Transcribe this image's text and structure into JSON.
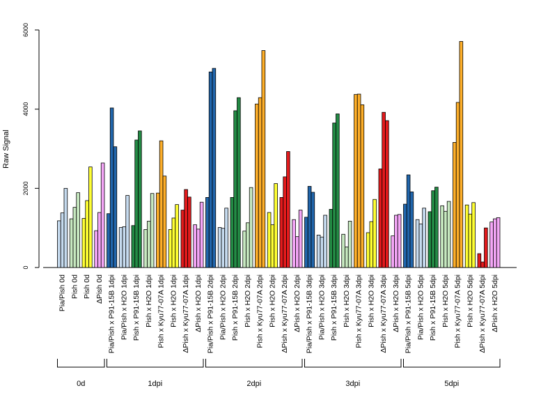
{
  "chart_data": {
    "type": "bar",
    "ylabel": "Raw Signal",
    "ylim": [
      0,
      6000
    ],
    "yticks": [
      0,
      2000,
      4000,
      6000
    ],
    "palette": {
      "lightblue": "#c6dbef",
      "blue": "#2166ac",
      "lightgreen": "#c7e9c0",
      "green": "#238b45",
      "yellow": "#ffff33",
      "orange": "#fdae29",
      "red": "#e31a1c",
      "pink": "#f4a6f7"
    },
    "categories": [
      {
        "label": "Pia/Pish 0d",
        "color": "lightblue",
        "values": [
          1180,
          1380,
          2000
        ]
      },
      {
        "label": "Pish 0d",
        "color": "lightgreen",
        "values": [
          1230,
          1520,
          1890
        ]
      },
      {
        "label": "Pish 0d",
        "color": "yellow",
        "values": [
          1240,
          1690,
          2540
        ]
      },
      {
        "label": "ΔPish 0d",
        "color": "pink",
        "values": [
          930,
          1390,
          2640
        ]
      },
      {
        "label": "Pia/Pish x P91-15B 1dpi",
        "color": "blue",
        "values": [
          1360,
          4030,
          3050
        ]
      },
      {
        "label": "Pia/Pish x H2O 1dpi",
        "color": "lightblue",
        "values": [
          1010,
          1030,
          1820
        ]
      },
      {
        "label": "Pish x P91-15B 1dpi",
        "color": "green",
        "values": [
          1060,
          3220,
          3450
        ]
      },
      {
        "label": "Pish x H2O 1dpi",
        "color": "lightgreen",
        "values": [
          960,
          1170,
          1870
        ]
      },
      {
        "label": "Pish x Kyu77-07A 1dpi",
        "color": "orange",
        "values": [
          1880,
          3200,
          2310
        ]
      },
      {
        "label": "Pish x H2O 1dpi",
        "color": "yellow",
        "values": [
          960,
          1250,
          1590
        ]
      },
      {
        "label": "ΔPish x Kyu77-07A 1dpi",
        "color": "red",
        "values": [
          1450,
          1970,
          1780
        ]
      },
      {
        "label": "ΔPish x H2O 1dpi",
        "color": "pink",
        "values": [
          1080,
          970,
          1650
        ]
      },
      {
        "label": "Pia/Pish x P91-15B 2dpi",
        "color": "blue",
        "values": [
          1770,
          4940,
          5030
        ]
      },
      {
        "label": "Pia/Pish x H2O 2dpi",
        "color": "lightblue",
        "values": [
          1010,
          990,
          1500
        ]
      },
      {
        "label": "Pish x P91-15B 2dpi",
        "color": "green",
        "values": [
          1770,
          3960,
          4290
        ]
      },
      {
        "label": "Pish x H2O 2dpi",
        "color": "lightgreen",
        "values": [
          920,
          1130,
          2020
        ]
      },
      {
        "label": "Pish x Kyu77-07A 2dpi",
        "color": "orange",
        "values": [
          4130,
          4290,
          5480
        ]
      },
      {
        "label": "Pish x H2O 2dpi",
        "color": "yellow",
        "values": [
          1390,
          1080,
          2120
        ]
      },
      {
        "label": "ΔPish x Kyu77-07A 2dpi",
        "color": "red",
        "values": [
          1770,
          2290,
          2930
        ]
      },
      {
        "label": "ΔPish x H2O 2dpi",
        "color": "pink",
        "values": [
          1210,
          780,
          1450
        ]
      },
      {
        "label": "Pia/Pish x P91-15B 3dpi",
        "color": "blue",
        "values": [
          1270,
          2050,
          1900
        ]
      },
      {
        "label": "Pia/Pish x H2O 3dpi",
        "color": "lightblue",
        "values": [
          820,
          770,
          1320
        ]
      },
      {
        "label": "Pish x P91-15B 3dpi",
        "color": "green",
        "values": [
          1470,
          3650,
          3880
        ]
      },
      {
        "label": "Pish x H2O 3dpi",
        "color": "lightgreen",
        "values": [
          840,
          520,
          1170
        ]
      },
      {
        "label": "Pish x Kyu77-07A 3dpi",
        "color": "orange",
        "values": [
          4370,
          4380,
          4110
        ]
      },
      {
        "label": "Pish x H2O 3dpi",
        "color": "yellow",
        "values": [
          880,
          1160,
          1720
        ]
      },
      {
        "label": "ΔPish x Kyu77-07A 3dpi",
        "color": "red",
        "values": [
          2490,
          3920,
          3710
        ]
      },
      {
        "label": "ΔPish x H2O 3dpi",
        "color": "pink",
        "values": [
          800,
          1320,
          1340
        ]
      },
      {
        "label": "Pia/Pish x P91-15B 5dpi",
        "color": "blue",
        "values": [
          1600,
          2340,
          1910
        ]
      },
      {
        "label": "Pia/Pish x H2O 5dpi",
        "color": "lightblue",
        "values": [
          1210,
          1100,
          1500
        ]
      },
      {
        "label": "Pish x P91-15B 5dpi",
        "color": "green",
        "values": [
          1410,
          1940,
          2030
        ]
      },
      {
        "label": "Pish x H2O 5dpi",
        "color": "lightgreen",
        "values": [
          1560,
          1420,
          1670
        ]
      },
      {
        "label": "Pish x Kyu77-07A 5dpi",
        "color": "orange",
        "values": [
          3160,
          4170,
          5710
        ]
      },
      {
        "label": "Pish x H2O 5dpi",
        "color": "yellow",
        "values": [
          1580,
          1350,
          1640
        ]
      },
      {
        "label": "ΔPish x Kyu77-07A 5dpi",
        "color": "red",
        "values": [
          350,
          140,
          1000
        ]
      },
      {
        "label": "ΔPish x H2O 5dpi",
        "color": "pink",
        "values": [
          1150,
          1230,
          1260
        ]
      }
    ],
    "timepoints": [
      {
        "label": "0d",
        "start": 0,
        "end": 3
      },
      {
        "label": "1dpi",
        "start": 4,
        "end": 11
      },
      {
        "label": "2dpi",
        "start": 12,
        "end": 19
      },
      {
        "label": "3dpi",
        "start": 20,
        "end": 27
      },
      {
        "label": "5dpi",
        "start": 28,
        "end": 35
      }
    ]
  }
}
